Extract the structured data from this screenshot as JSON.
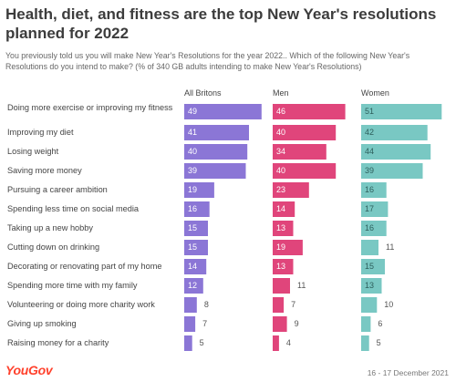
{
  "title": "Health, diet, and fitness are the top New Year's resolutions planned for 2022",
  "subtitle": "You previously told us you will make New Year's Resolutions for the year 2022.. Which of the following New Year's Resolutions do you intend to make? (% of 340 GB adults intending to make New Year's Resolutions)",
  "logo_text": "YouGov",
  "footnote": "16 - 17 December 2021",
  "colors": {
    "all": "#8b76d6",
    "men": "#e0457b",
    "women": "#79c8c3"
  },
  "chart_data": {
    "type": "bar",
    "orientation": "horizontal",
    "categories": [
      "Doing more exercise or improving my fitness",
      "Improving my diet",
      "Losing weight",
      "Saving more money",
      "Pursuing a career ambition",
      "Spending less time on social media",
      "Taking up a new hobby",
      "Cutting down on drinking",
      "Decorating or renovating part of my home",
      "Spending more time with my family",
      "Volunteering or doing more charity work",
      "Giving up smoking",
      "Raising money for a charity"
    ],
    "series": [
      {
        "name": "All Britons",
        "values": [
          49,
          41,
          40,
          39,
          19,
          16,
          15,
          15,
          14,
          12,
          8,
          7,
          5
        ]
      },
      {
        "name": "Men",
        "values": [
          46,
          40,
          34,
          40,
          23,
          14,
          13,
          19,
          13,
          11,
          7,
          9,
          4
        ]
      },
      {
        "name": "Women",
        "values": [
          51,
          42,
          44,
          39,
          16,
          17,
          16,
          11,
          15,
          13,
          10,
          6,
          5
        ]
      }
    ],
    "xlim": [
      0,
      52
    ],
    "grid": false,
    "legend": "column headers"
  }
}
